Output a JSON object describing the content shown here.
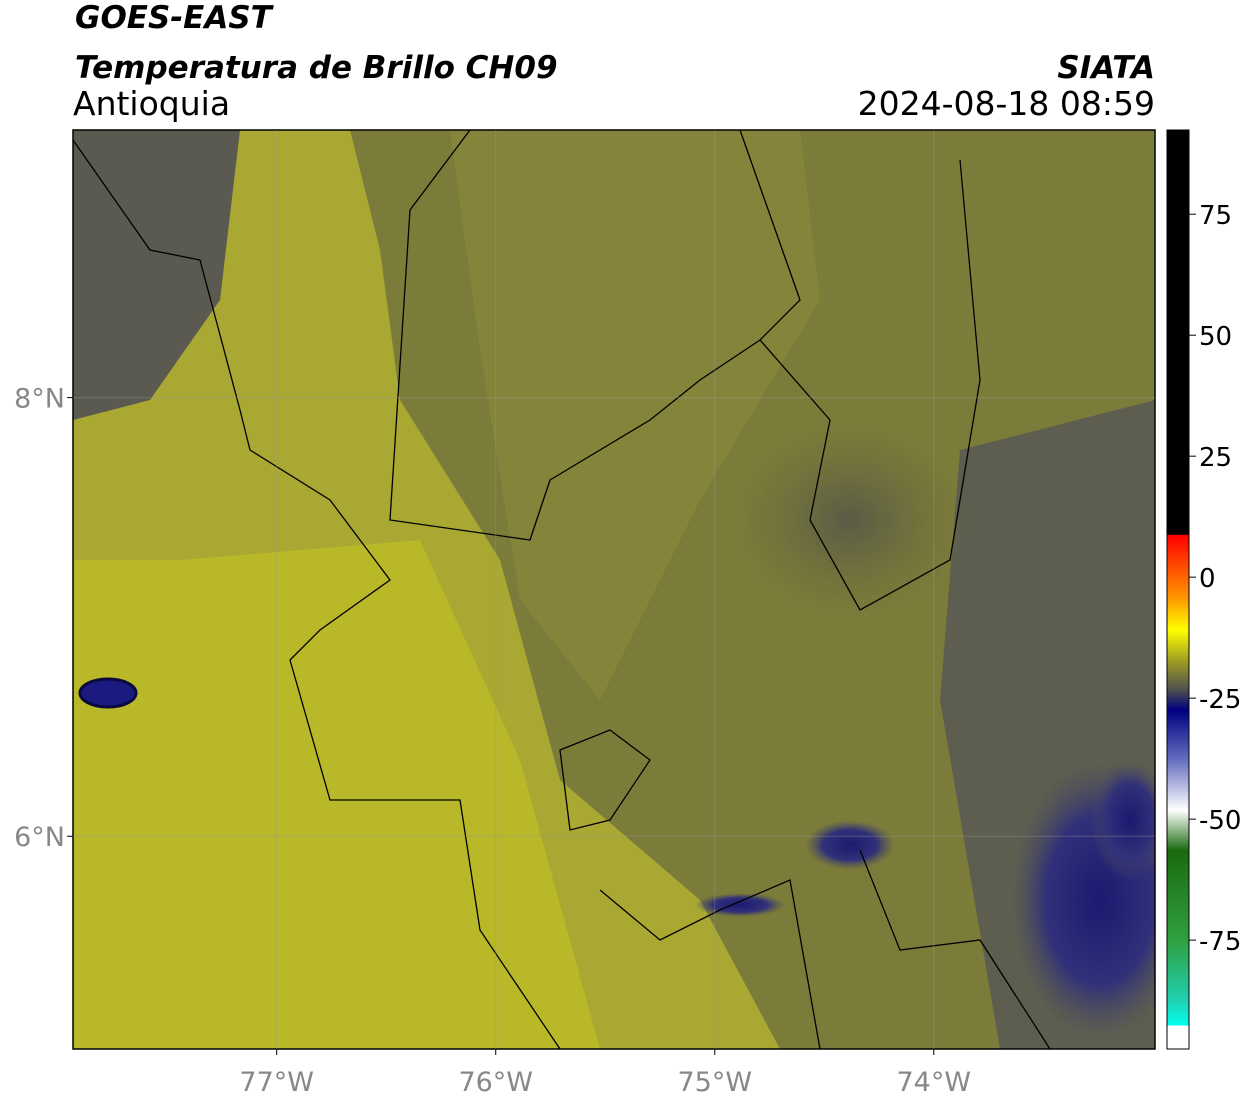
{
  "header": {
    "title": "GOES-EAST",
    "subtitle": "Temperatura de Brillo CH09",
    "region": "Antioquia",
    "source": "SIATA",
    "datetime": "2024-08-18 08:59"
  },
  "map": {
    "xlim": [
      -77.93,
      -72.99
    ],
    "ylim": [
      5.03,
      9.22
    ],
    "xticks": [
      {
        "value": -77,
        "label": "77°W"
      },
      {
        "value": -76,
        "label": "76°W"
      },
      {
        "value": -75,
        "label": "75°W"
      },
      {
        "value": -74,
        "label": "74°W"
      }
    ],
    "yticks": [
      {
        "value": 8,
        "label": "8°N"
      },
      {
        "value": 6,
        "label": "6°N"
      }
    ]
  },
  "colorbar": {
    "lim": [
      -97.5,
      92.4
    ],
    "ticks": [
      75,
      50,
      25,
      0,
      -25,
      -50,
      -75
    ]
  }
}
